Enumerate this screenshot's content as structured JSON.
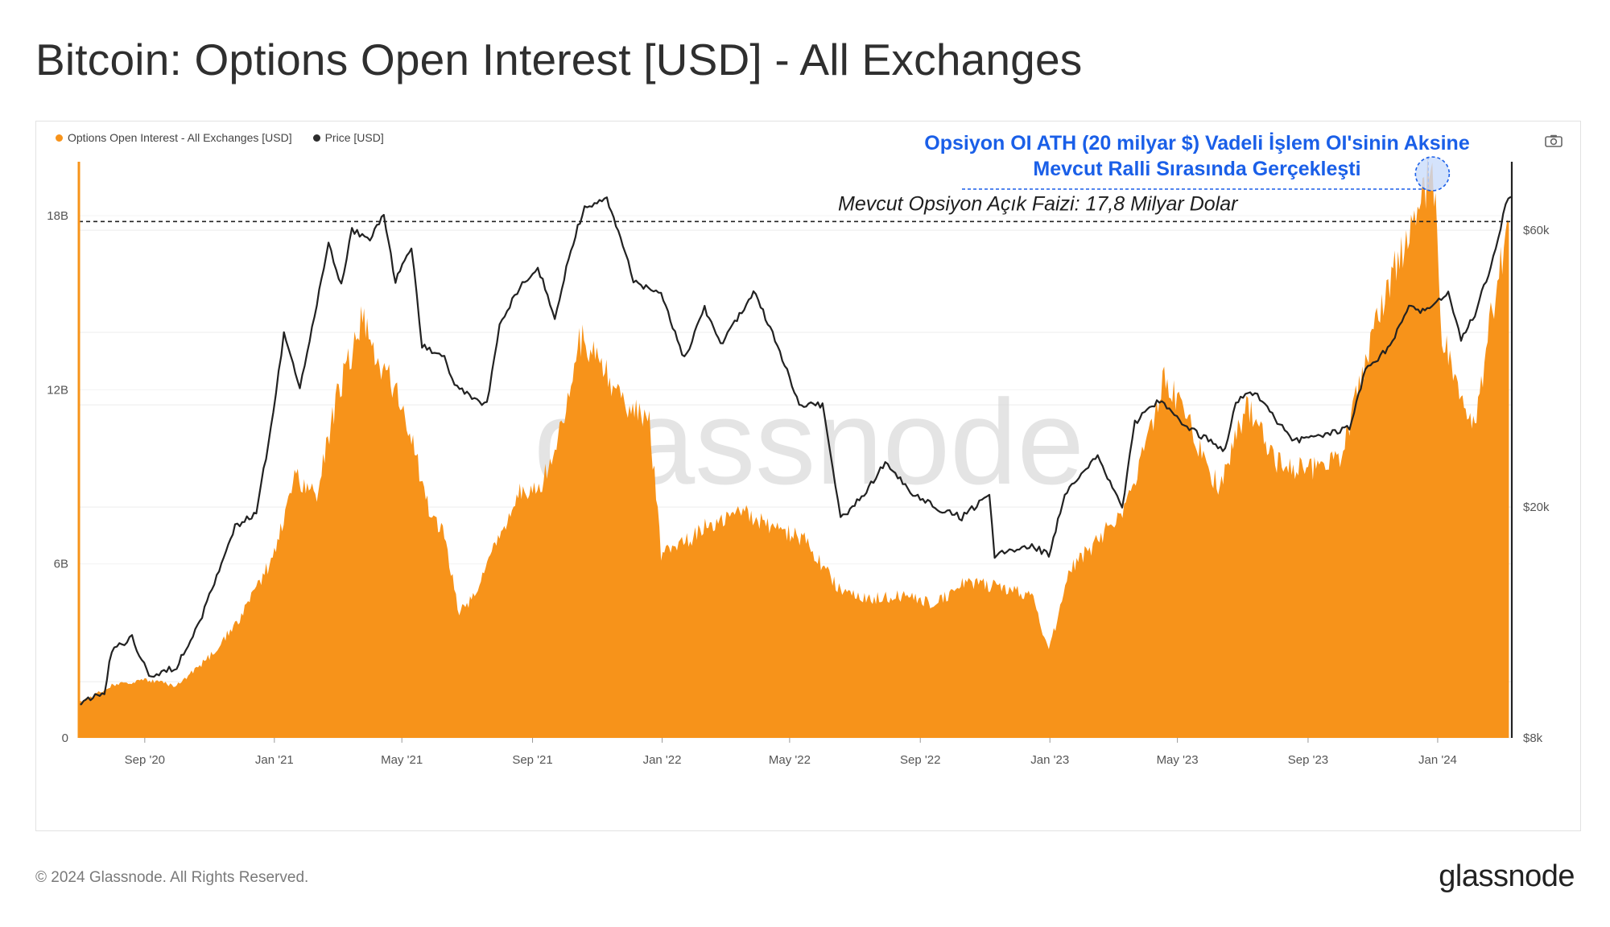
{
  "page": {
    "title": "Bitcoin: Options Open Interest [USD] - All Exchanges",
    "copyright": "© 2024 Glassnode. All Rights Reserved.",
    "logo": "glassnode",
    "watermark": "glassnode"
  },
  "legend": {
    "oi_label": "Options Open Interest - All Exchanges [USD]",
    "price_label": "Price [USD]"
  },
  "colors": {
    "oi": "#f7931a",
    "price": "#222222",
    "annotation": "#1a5fe8",
    "accent_line": "#f7931a"
  },
  "annotations": {
    "ath_line1": "Opsiyon OI ATH (20 milyar $) Vadeli İşlem OI'sinin Aksine",
    "ath_line2": "Mevcut Ralli Sırasında Gerçekleşti",
    "current_label": "Mevcut Opsiyon Açık Faizi: 17,8 Milyar Dolar"
  },
  "chart_data": {
    "type": "area",
    "x_axis": {
      "range": [
        "2020-07-01",
        "2024-03-10"
      ],
      "ticks": [
        {
          "date": "2020-09-01",
          "label": "Sep '20"
        },
        {
          "date": "2021-01-01",
          "label": "Jan '21"
        },
        {
          "date": "2021-05-01",
          "label": "May '21"
        },
        {
          "date": "2021-09-01",
          "label": "Sep '21"
        },
        {
          "date": "2022-01-01",
          "label": "Jan '22"
        },
        {
          "date": "2022-05-01",
          "label": "May '22"
        },
        {
          "date": "2022-09-01",
          "label": "Sep '22"
        },
        {
          "date": "2023-01-01",
          "label": "Jan '23"
        },
        {
          "date": "2023-05-01",
          "label": "May '23"
        },
        {
          "date": "2023-09-01",
          "label": "Sep '23"
        },
        {
          "date": "2024-01-01",
          "label": "Jan '24"
        }
      ]
    },
    "y_left": {
      "scale": "linear",
      "range": [
        0,
        20000000000
      ],
      "ticks": [
        {
          "v": 0,
          "label": "0"
        },
        {
          "v": 6000000000,
          "label": "6B"
        },
        {
          "v": 12000000000,
          "label": "12B"
        },
        {
          "v": 18000000000,
          "label": "18B"
        }
      ]
    },
    "y_right": {
      "scale": "log",
      "range": [
        8000,
        80000
      ],
      "ticks": [
        {
          "v": 8000,
          "label": "$8k"
        },
        {
          "v": 20000,
          "label": "$20k"
        },
        {
          "v": 60000,
          "label": "$60k"
        }
      ]
    },
    "grid": true,
    "legend_position": "top-left",
    "reference_line": {
      "value": 17800000000,
      "style": "dashed"
    },
    "ath_marker": {
      "date": "2023-12-27",
      "value": 20000000000
    },
    "series": [
      {
        "name": "Options Open Interest - All Exchanges [USD]",
        "type": "area",
        "axis": "left",
        "points": [
          [
            "2020-07-01",
            1200000000
          ],
          [
            "2020-08-01",
            1800000000
          ],
          [
            "2020-09-01",
            2000000000
          ],
          [
            "2020-10-01",
            1800000000
          ],
          [
            "2020-11-01",
            2800000000
          ],
          [
            "2020-12-01",
            4200000000
          ],
          [
            "2021-01-01",
            6300000000
          ],
          [
            "2021-01-20",
            9000000000
          ],
          [
            "2021-02-10",
            8500000000
          ],
          [
            "2021-03-01",
            11800000000
          ],
          [
            "2021-03-25",
            14500000000
          ],
          [
            "2021-04-10",
            13000000000
          ],
          [
            "2021-04-25",
            12000000000
          ],
          [
            "2021-05-10",
            10500000000
          ],
          [
            "2021-05-25",
            8000000000
          ],
          [
            "2021-06-10",
            7000000000
          ],
          [
            "2021-06-24",
            4300000000
          ],
          [
            "2021-07-10",
            5000000000
          ],
          [
            "2021-08-01",
            7000000000
          ],
          [
            "2021-08-20",
            8500000000
          ],
          [
            "2021-09-10",
            8800000000
          ],
          [
            "2021-10-01",
            11000000000
          ],
          [
            "2021-10-15",
            13800000000
          ],
          [
            "2021-11-05",
            13000000000
          ],
          [
            "2021-11-25",
            11500000000
          ],
          [
            "2021-12-20",
            11000000000
          ],
          [
            "2021-12-31",
            6300000000
          ],
          [
            "2022-01-15",
            6500000000
          ],
          [
            "2022-02-15",
            7400000000
          ],
          [
            "2022-03-15",
            7800000000
          ],
          [
            "2022-04-15",
            7300000000
          ],
          [
            "2022-05-15",
            6800000000
          ],
          [
            "2022-06-15",
            5200000000
          ],
          [
            "2022-07-15",
            4800000000
          ],
          [
            "2022-08-15",
            4900000000
          ],
          [
            "2022-09-15",
            4600000000
          ],
          [
            "2022-10-15",
            5400000000
          ],
          [
            "2022-11-15",
            5200000000
          ],
          [
            "2022-12-15",
            4900000000
          ],
          [
            "2022-12-31",
            3000000000
          ],
          [
            "2023-01-20",
            5800000000
          ],
          [
            "2023-02-15",
            6800000000
          ],
          [
            "2023-03-15",
            8000000000
          ],
          [
            "2023-04-01",
            10000000000
          ],
          [
            "2023-04-20",
            12500000000
          ],
          [
            "2023-05-10",
            11000000000
          ],
          [
            "2023-06-10",
            8500000000
          ],
          [
            "2023-07-05",
            11500000000
          ],
          [
            "2023-08-01",
            9500000000
          ],
          [
            "2023-09-01",
            9200000000
          ],
          [
            "2023-10-01",
            9600000000
          ],
          [
            "2023-10-25",
            13000000000
          ],
          [
            "2023-11-20",
            16000000000
          ],
          [
            "2023-12-10",
            17500000000
          ],
          [
            "2023-12-27",
            20000000000
          ],
          [
            "2024-01-05",
            14000000000
          ],
          [
            "2024-01-20",
            12000000000
          ],
          [
            "2024-02-05",
            10500000000
          ],
          [
            "2024-02-20",
            14500000000
          ],
          [
            "2024-03-08",
            17800000000
          ]
        ]
      },
      {
        "name": "Price [USD]",
        "type": "line",
        "axis": "right",
        "points": [
          [
            "2020-07-01",
            9200
          ],
          [
            "2020-07-25",
            9600
          ],
          [
            "2020-08-01",
            11300
          ],
          [
            "2020-08-20",
            11900
          ],
          [
            "2020-09-05",
            10200
          ],
          [
            "2020-10-01",
            10600
          ],
          [
            "2020-10-25",
            13000
          ],
          [
            "2020-11-10",
            15500
          ],
          [
            "2020-11-25",
            18500
          ],
          [
            "2020-12-15",
            19500
          ],
          [
            "2020-12-31",
            29000
          ],
          [
            "2021-01-10",
            40000
          ],
          [
            "2021-01-25",
            32000
          ],
          [
            "2021-02-10",
            45000
          ],
          [
            "2021-02-21",
            57000
          ],
          [
            "2021-03-05",
            48000
          ],
          [
            "2021-03-15",
            60000
          ],
          [
            "2021-04-01",
            58000
          ],
          [
            "2021-04-14",
            63500
          ],
          [
            "2021-04-25",
            49000
          ],
          [
            "2021-05-10",
            56000
          ],
          [
            "2021-05-20",
            38000
          ],
          [
            "2021-06-10",
            36000
          ],
          [
            "2021-06-22",
            32000
          ],
          [
            "2021-07-20",
            30000
          ],
          [
            "2021-08-01",
            41000
          ],
          [
            "2021-08-20",
            48000
          ],
          [
            "2021-09-06",
            52000
          ],
          [
            "2021-09-22",
            42000
          ],
          [
            "2021-10-05",
            54000
          ],
          [
            "2021-10-20",
            66000
          ],
          [
            "2021-11-10",
            68000
          ],
          [
            "2021-11-25",
            57000
          ],
          [
            "2021-12-05",
            49000
          ],
          [
            "2021-12-31",
            46500
          ],
          [
            "2022-01-22",
            36000
          ],
          [
            "2022-02-10",
            44000
          ],
          [
            "2022-02-25",
            38000
          ],
          [
            "2022-03-28",
            47000
          ],
          [
            "2022-04-15",
            40000
          ],
          [
            "2022-05-10",
            30000
          ],
          [
            "2022-06-01",
            30000
          ],
          [
            "2022-06-18",
            19000
          ],
          [
            "2022-07-10",
            21000
          ],
          [
            "2022-07-30",
            23800
          ],
          [
            "2022-08-25",
            21000
          ],
          [
            "2022-09-15",
            20000
          ],
          [
            "2022-10-10",
            19200
          ],
          [
            "2022-11-05",
            21000
          ],
          [
            "2022-11-10",
            16500
          ],
          [
            "2022-12-15",
            17200
          ],
          [
            "2022-12-31",
            16500
          ],
          [
            "2023-01-15",
            21000
          ],
          [
            "2023-02-15",
            24500
          ],
          [
            "2023-03-10",
            20000
          ],
          [
            "2023-03-22",
            28000
          ],
          [
            "2023-04-14",
            30500
          ],
          [
            "2023-05-10",
            27500
          ],
          [
            "2023-06-15",
            25000
          ],
          [
            "2023-06-25",
            30500
          ],
          [
            "2023-07-13",
            31500
          ],
          [
            "2023-08-17",
            26000
          ],
          [
            "2023-09-15",
            26500
          ],
          [
            "2023-10-10",
            27500
          ],
          [
            "2023-10-25",
            34500
          ],
          [
            "2023-11-15",
            37500
          ],
          [
            "2023-12-05",
            44000
          ],
          [
            "2023-12-20",
            43500
          ],
          [
            "2024-01-11",
            46500
          ],
          [
            "2024-01-23",
            39000
          ],
          [
            "2024-02-05",
            43000
          ],
          [
            "2024-02-20",
            52000
          ],
          [
            "2024-03-05",
            66000
          ],
          [
            "2024-03-10",
            68500
          ]
        ]
      }
    ]
  }
}
